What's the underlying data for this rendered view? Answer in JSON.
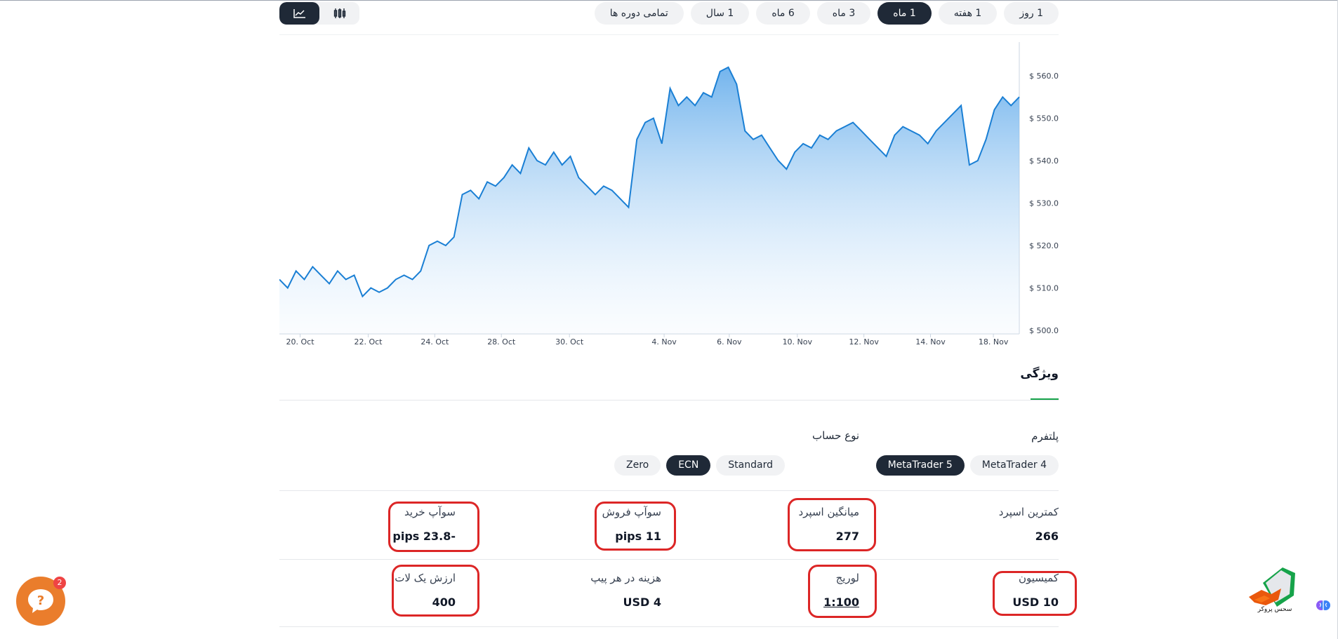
{
  "periods": [
    {
      "label": "1 روز",
      "active": false
    },
    {
      "label": "1 هفته",
      "active": false
    },
    {
      "label": "1 ماه",
      "active": true
    },
    {
      "label": "3 ماه",
      "active": false
    },
    {
      "label": "6 ماه",
      "active": false
    },
    {
      "label": "1 سال",
      "active": false
    },
    {
      "label": "تمامی دوره ها",
      "active": false
    }
  ],
  "chart_type_icons": [
    "candlestick-icon",
    "line-chart-icon"
  ],
  "chart_data": {
    "type": "area",
    "x_ticks": [
      "20. Oct",
      "22. Oct",
      "24. Oct",
      "28. Oct",
      "30. Oct",
      "4. Nov",
      "6. Nov",
      "10. Nov",
      "12. Nov",
      "14. Nov",
      "18. Nov"
    ],
    "y_ticks": [
      "$ 500.00",
      "$ 510.00",
      "$ 520.00",
      "$ 530.00",
      "$ 540.00",
      "$ 550.00",
      "$ 560.00"
    ],
    "ylim": [
      500,
      570
    ],
    "values": [
      512,
      510,
      514,
      512,
      515,
      513,
      511,
      514,
      512,
      513,
      508,
      510,
      509,
      510,
      512,
      513,
      512,
      514,
      520,
      521,
      520,
      522,
      532,
      533,
      531,
      535,
      534,
      536,
      539,
      537,
      543,
      540,
      539,
      542,
      539,
      541,
      536,
      534,
      532,
      534,
      533,
      531,
      529,
      545,
      549,
      550,
      544,
      557,
      553,
      555,
      553,
      556,
      555,
      561,
      562,
      558,
      547,
      545,
      546,
      543,
      540,
      538,
      542,
      544,
      543,
      546,
      545,
      547,
      548,
      549,
      547,
      545,
      543,
      541,
      546,
      548,
      547,
      546,
      544,
      547,
      549,
      551,
      553,
      539,
      540,
      545,
      552,
      555,
      553,
      555
    ],
    "color": "#1a7fd4"
  },
  "features": {
    "tab": "ویژگی",
    "platform_label": "پلتفرم",
    "account_label": "نوع حساب",
    "platforms": [
      {
        "label": "MetaTrader 4",
        "active": false
      },
      {
        "label": "MetaTrader 5",
        "active": true
      }
    ],
    "accounts": [
      {
        "label": "Standard",
        "active": false
      },
      {
        "label": "ECN",
        "active": true
      },
      {
        "label": "Zero",
        "active": false
      }
    ],
    "rows": [
      [
        {
          "k": "کمترین اسپرد",
          "v": "266"
        },
        {
          "k": "میانگین اسپرد",
          "v": "277"
        },
        {
          "k": "سوآپ فروش",
          "v": "11 pips"
        },
        {
          "k": "سوآپ خرید",
          "v": "-23.8 pips"
        }
      ],
      [
        {
          "k": "کمیسیون",
          "v": "10 USD"
        },
        {
          "k": "لوریج",
          "v": "1:100"
        },
        {
          "k": "هزینه در هر پیپ",
          "v": "4 USD"
        },
        {
          "k": "ارزش یک لات",
          "v": "400"
        }
      ]
    ]
  },
  "chat": {
    "badge": "2"
  },
  "logo": {
    "text": "سحس پروکر"
  },
  "colors": {
    "dark": "#1f2937",
    "accent_line": "#1a7fd4",
    "highlight": "#dc2626",
    "green": "#16a34a",
    "chat": "#ea7d2c"
  }
}
